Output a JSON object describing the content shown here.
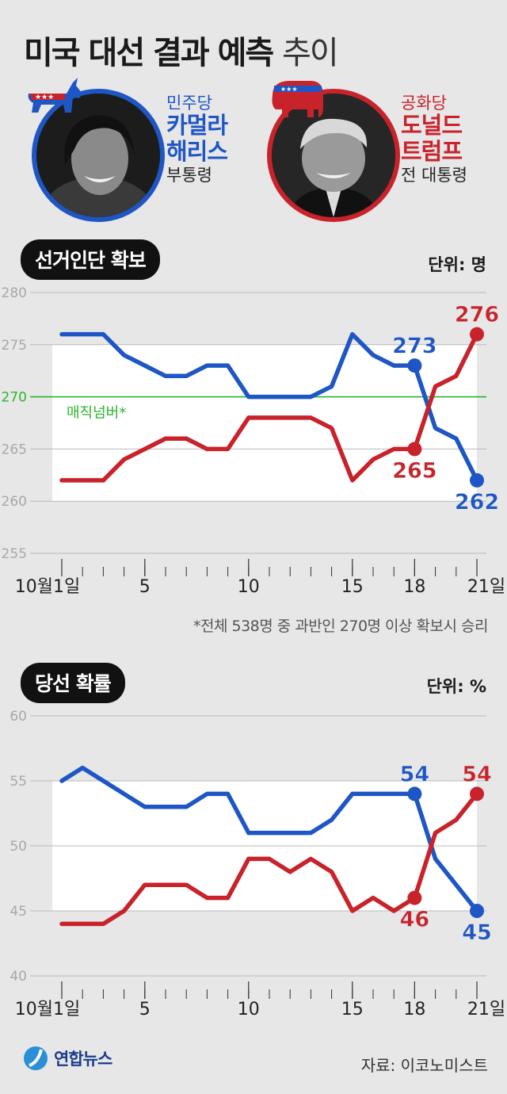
{
  "title": {
    "bold": "미국 대선 결과 예측",
    "light": "추이"
  },
  "candidates": {
    "dem": {
      "party": "민주당",
      "name_line1": "카멀라",
      "name_line2": "해리스",
      "role": "부통령",
      "color": "#1e56c5"
    },
    "rep": {
      "party": "공화당",
      "name_line1": "도널드",
      "name_line2": "트럼프",
      "role": "전 대통령",
      "color": "#c8232b"
    }
  },
  "section1": {
    "pill": "선거인단 확보",
    "unit": "단위: 명"
  },
  "section2": {
    "pill": "당선 확률",
    "unit": "단위: %"
  },
  "footnote": "*전체 538명 중 과반인 270명 이상 확보시 승리",
  "logo": "연합뉴스",
  "source": "자료: 이코노미스트",
  "chart_data": [
    {
      "type": "line",
      "x": [
        1,
        2,
        3,
        4,
        5,
        6,
        7,
        8,
        9,
        10,
        11,
        12,
        13,
        14,
        15,
        16,
        17,
        18,
        19,
        20,
        21
      ],
      "xticks": [
        1,
        5,
        10,
        15,
        18,
        21
      ],
      "xtick_labels": [
        "10월1일",
        "5",
        "10",
        "15",
        "18",
        "21일"
      ],
      "ylim": [
        255,
        280
      ],
      "yticks": [
        255,
        260,
        265,
        270,
        275,
        280
      ],
      "grid": true,
      "reference": {
        "y": 270,
        "label": "매직넘버*",
        "color": "#2db52d"
      },
      "series": [
        {
          "name": "카멀라 해리스",
          "color": "#1e56c5",
          "values": [
            276,
            276,
            276,
            274,
            273,
            272,
            272,
            273,
            273,
            270,
            270,
            270,
            270,
            271,
            276,
            274,
            273,
            273,
            267,
            266,
            262
          ],
          "labels": [
            {
              "x": 18,
              "text": "273",
              "pos": "above"
            },
            {
              "x": 21,
              "text": "262",
              "pos": "below"
            }
          ]
        },
        {
          "name": "도널드 트럼프",
          "color": "#c8232b",
          "values": [
            262,
            262,
            262,
            264,
            265,
            266,
            266,
            265,
            265,
            268,
            268,
            268,
            268,
            267,
            262,
            264,
            265,
            265,
            271,
            272,
            276
          ],
          "labels": [
            {
              "x": 18,
              "text": "265",
              "pos": "below"
            },
            {
              "x": 21,
              "text": "276",
              "pos": "above"
            }
          ]
        }
      ]
    },
    {
      "type": "line",
      "x": [
        1,
        2,
        3,
        4,
        5,
        6,
        7,
        8,
        9,
        10,
        11,
        12,
        13,
        14,
        15,
        16,
        17,
        18,
        19,
        20,
        21
      ],
      "xticks": [
        1,
        5,
        10,
        15,
        18,
        21
      ],
      "xtick_labels": [
        "10월1일",
        "5",
        "10",
        "15",
        "18",
        "21일"
      ],
      "ylim": [
        40,
        60
      ],
      "yticks": [
        40,
        45,
        50,
        55,
        60
      ],
      "grid": true,
      "series": [
        {
          "name": "카멀라 해리스",
          "color": "#1e56c5",
          "values": [
            55,
            56,
            55,
            54,
            53,
            53,
            53,
            54,
            54,
            51,
            51,
            51,
            51,
            52,
            54,
            54,
            54,
            54,
            49,
            47,
            45
          ],
          "labels": [
            {
              "x": 18,
              "text": "54",
              "pos": "above"
            },
            {
              "x": 21,
              "text": "45",
              "pos": "below"
            }
          ]
        },
        {
          "name": "도널드 트럼프",
          "color": "#c8232b",
          "values": [
            44,
            44,
            44,
            45,
            47,
            47,
            47,
            46,
            46,
            49,
            49,
            48,
            49,
            48,
            45,
            46,
            45,
            46,
            51,
            52,
            54
          ],
          "labels": [
            {
              "x": 18,
              "text": "46",
              "pos": "below"
            },
            {
              "x": 21,
              "text": "54",
              "pos": "above"
            }
          ]
        }
      ]
    }
  ]
}
